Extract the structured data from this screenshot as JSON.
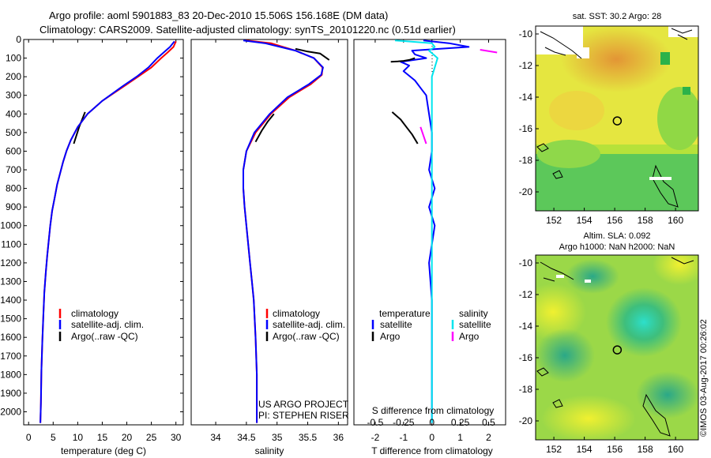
{
  "header": {
    "line1": "Argo profile: aoml 5901883_83 20-Dec-2010 15.506S 156.168E (DM data)",
    "line2": "Climatology: CARS2009. Satellite-adjusted climatology: synTS_20101220.nc (0.51d earlier)"
  },
  "chart_data": [
    {
      "type": "line",
      "name": "temperature",
      "xlabel": "temperature (deg C)",
      "xlim": [
        -1,
        31.5
      ],
      "xticks": [
        0,
        5,
        10,
        15,
        20,
        25,
        30
      ],
      "ylim": [
        0,
        2070
      ],
      "yticks": [
        0,
        100,
        200,
        300,
        400,
        500,
        600,
        700,
        800,
        900,
        1000,
        1100,
        1200,
        1300,
        1400,
        1500,
        1600,
        1700,
        1800,
        1900,
        2000
      ],
      "ylabel": "",
      "legend": [
        "climatology",
        "satellite-adj. clim.",
        "Argo(..raw -QC)"
      ],
      "colors": {
        "climatology": "#ff0000",
        "satellite": "#0000ff",
        "argo": "#000000"
      },
      "series": [
        {
          "name": "Argo",
          "color": "#000000",
          "x": [
            11.5,
            10.3,
            9.2
          ],
          "y": [
            390,
            470,
            560
          ]
        },
        {
          "name": "climatology",
          "color": "#ff0000",
          "x": [
            30,
            29.5,
            28.3,
            27,
            25,
            22.3,
            19.5,
            15,
            12,
            10,
            8.6,
            7.7,
            7,
            6.4,
            5.8,
            5.3,
            4.8,
            4.4,
            4.1,
            3.8,
            3.5,
            3.2,
            3.0,
            2.8,
            2.6,
            2.5,
            2.4
          ],
          "y": [
            10,
            40,
            70,
            100,
            150,
            200,
            250,
            330,
            400,
            470,
            540,
            600,
            660,
            720,
            780,
            850,
            920,
            1000,
            1080,
            1160,
            1250,
            1360,
            1480,
            1620,
            1780,
            1950,
            2060
          ]
        },
        {
          "name": "satellite-adj. clim.",
          "color": "#0000ff",
          "x": [
            29.7,
            28.8,
            27.5,
            26.2,
            24.4,
            22,
            19.2,
            15,
            12,
            10,
            8.6,
            7.7,
            7,
            6.4,
            5.8,
            5.3,
            4.8,
            4.4,
            4.1,
            3.8,
            3.5,
            3.2,
            3.0,
            2.8,
            2.6,
            2.5,
            2.4
          ],
          "y": [
            10,
            40,
            70,
            100,
            150,
            200,
            250,
            330,
            400,
            470,
            540,
            600,
            660,
            720,
            780,
            850,
            920,
            1000,
            1080,
            1160,
            1250,
            1360,
            1480,
            1620,
            1780,
            1950,
            2060
          ]
        }
      ]
    },
    {
      "type": "line",
      "name": "salinity",
      "xlabel": "salinity",
      "xlim": [
        33.6,
        36.15
      ],
      "xticks": [
        34,
        34.5,
        35,
        35.5,
        36
      ],
      "legend": [
        "climatology",
        "satellite-adj. clim.",
        "Argo(..raw -QC)"
      ],
      "annotations": [
        "US ARGO PROJECT",
        "PI: STEPHEN RISER"
      ],
      "series": [
        {
          "name": "Argo upper",
          "color": "#000000",
          "x": [
            35.3,
            35.5,
            35.7,
            35.85
          ],
          "y": [
            50,
            65,
            75,
            110
          ]
        },
        {
          "name": "Argo mid",
          "color": "#000000",
          "x": [
            34.95,
            34.85,
            34.75,
            34.65
          ],
          "y": [
            400,
            440,
            490,
            550
          ]
        },
        {
          "name": "climatology",
          "color": "#ff0000",
          "x": [
            34.5,
            34.9,
            35.1,
            35.3,
            35.6,
            35.74,
            35.73,
            35.55,
            35.2,
            34.9,
            34.65,
            34.5,
            34.45,
            34.45,
            34.47,
            34.5,
            34.53,
            34.56,
            34.59,
            34.62,
            34.65,
            34.67,
            34.67
          ],
          "y": [
            5,
            20,
            40,
            60,
            100,
            150,
            190,
            240,
            310,
            400,
            500,
            600,
            700,
            800,
            900,
            1000,
            1100,
            1200,
            1300,
            1400,
            1600,
            1800,
            2060
          ]
        },
        {
          "name": "satellite-adj. clim.",
          "color": "#0000ff",
          "x": [
            34.45,
            34.8,
            35.05,
            35.3,
            35.6,
            35.75,
            35.72,
            35.52,
            35.17,
            34.88,
            34.63,
            34.5,
            34.45,
            34.45,
            34.47,
            34.5,
            34.53,
            34.56,
            34.59,
            34.62,
            34.65,
            34.67,
            34.67
          ],
          "y": [
            5,
            20,
            40,
            60,
            100,
            150,
            190,
            240,
            310,
            400,
            500,
            600,
            700,
            800,
            900,
            1000,
            1100,
            1200,
            1300,
            1400,
            1600,
            1800,
            2060
          ]
        }
      ]
    },
    {
      "type": "line",
      "name": "difference",
      "xlabel": "T difference from climatology",
      "xlabel_top": "S difference from climatology",
      "xlim": [
        -2.75,
        2.6
      ],
      "xticks": [
        -2,
        -1,
        0,
        1,
        2
      ],
      "s_ticks": [
        "-0.5",
        "-0.25",
        "0",
        "0.25",
        "0.5"
      ],
      "legend_headers": [
        "temperature",
        "salinity"
      ],
      "legend": [
        "satellite",
        "Argo",
        "satellite",
        "Argo"
      ],
      "series": [
        {
          "name": "T satellite",
          "color": "#0000ff",
          "x": [
            -0.3,
            0.6,
            1.3,
            -0.7,
            -0.6,
            -0.2,
            -1.1,
            -0.8,
            -1.0,
            -0.6,
            -0.4,
            -0.2,
            -0.1,
            0.0,
            0.0,
            -0.1,
            0.1,
            -0.1,
            0.1,
            0.0,
            -0.1,
            0.0,
            0.0,
            0.0,
            0.0,
            0.0
          ],
          "y": [
            5,
            20,
            40,
            60,
            80,
            100,
            120,
            140,
            170,
            220,
            260,
            300,
            400,
            500,
            600,
            700,
            800,
            900,
            1000,
            1100,
            1200,
            1400,
            1600,
            1800,
            1950,
            2060
          ]
        },
        {
          "name": "S satellite",
          "color": "#00e5ee",
          "x": [
            -1.3,
            0.0,
            0.1,
            -0.1,
            0.2,
            0.1,
            0.0,
            0.0,
            0.0,
            0.0,
            0.0,
            0.0,
            0.0,
            0.0,
            0.0
          ],
          "y": [
            5,
            20,
            40,
            60,
            100,
            150,
            200,
            300,
            400,
            600,
            800,
            1000,
            1400,
            1800,
            2060
          ]
        },
        {
          "name": "T Argo",
          "color": "#000000",
          "x": [
            -0.6,
            -0.8,
            -1.0,
            -1.2,
            -1.45
          ],
          "y": [
            100,
            110,
            115,
            118,
            120
          ]
        },
        {
          "name": "T Argo deep",
          "color": "#000000",
          "x": [
            -1.4,
            -1.1,
            -0.9,
            -0.7,
            -0.5
          ],
          "y": [
            390,
            430,
            470,
            510,
            560
          ]
        },
        {
          "name": "S Argo",
          "color": "#ff00ff",
          "x": [
            1.7,
            2.3
          ],
          "y": [
            55,
            70
          ]
        },
        {
          "name": "S Argo mid",
          "color": "#ff00ff",
          "x": [
            -0.4,
            -0.2
          ],
          "y": [
            470,
            560
          ]
        }
      ]
    },
    {
      "type": "heatmap",
      "name": "sst-map",
      "title": "sat. SST: 30.2 Argo: 28",
      "xticks": [
        "152",
        "154",
        "156",
        "158",
        "160"
      ],
      "yticks": [
        "-10",
        "-12",
        "-14",
        "-16",
        "-18",
        "-20"
      ],
      "xlim": [
        150.8,
        161.5
      ],
      "ylim": [
        -21.2,
        -9.5
      ],
      "marker": {
        "lon": 156.168,
        "lat": -15.506
      }
    },
    {
      "type": "heatmap",
      "name": "sla-map",
      "title_line1": "Altim. SLA: 0.092",
      "title_line2": "Argo h1000: NaN h2000: NaN",
      "xticks": [
        "152",
        "154",
        "156",
        "158",
        "160"
      ],
      "yticks": [
        "-10",
        "-12",
        "-14",
        "-16",
        "-18",
        "-20"
      ],
      "xlim": [
        150.8,
        161.5
      ],
      "ylim": [
        -21.2,
        -9.5
      ],
      "marker": {
        "lon": 156.168,
        "lat": -15.506
      }
    }
  ],
  "credits": "©IMOS 03-Aug-2017 00:26:02"
}
